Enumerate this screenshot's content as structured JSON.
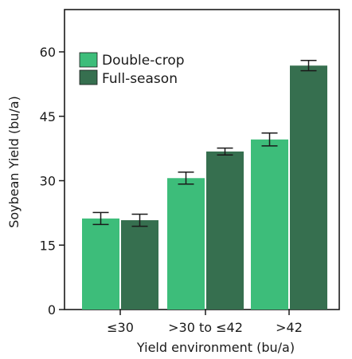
{
  "chart_data": {
    "type": "bar",
    "categories": [
      "≤30",
      ">30 to ≤42",
      ">42"
    ],
    "series": [
      {
        "name": "Double-crop",
        "values": [
          21.2,
          30.6,
          39.6
        ],
        "errors": [
          1.4,
          1.4,
          1.5
        ],
        "color": "#3dbd7a"
      },
      {
        "name": "Full-season",
        "values": [
          20.8,
          36.8,
          56.8
        ],
        "errors": [
          1.4,
          0.8,
          1.2
        ],
        "color": "#366f4f"
      }
    ],
    "xlabel": "Yield environment (bu/a)",
    "ylabel": "Soybean Yield (bu/a)",
    "ylim": [
      0,
      60
    ],
    "yticks": [
      0,
      15,
      30,
      45,
      60
    ],
    "legend_position": "top-left",
    "grid": false
  }
}
